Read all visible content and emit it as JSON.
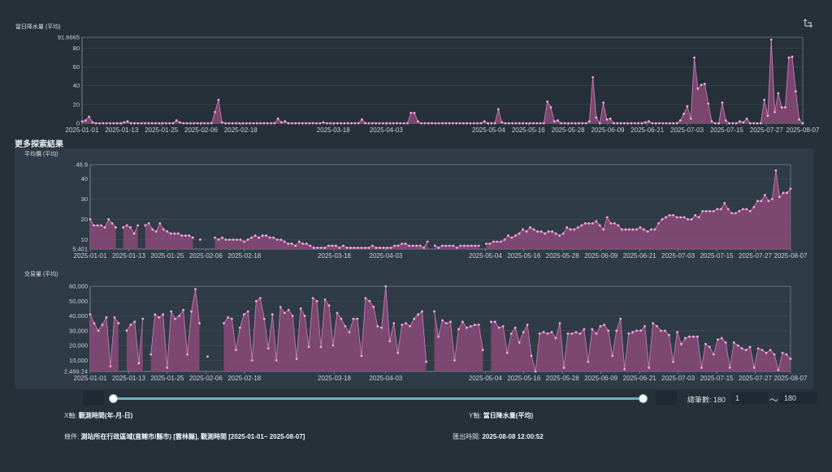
{
  "section_title": "更多探索結果",
  "range": {
    "count_label": "總筆數: 180",
    "from": "1",
    "to": "180",
    "tilde": "〜"
  },
  "info": {
    "x_label": "X軸:",
    "x_value": "觀測時間(年-月-日)",
    "y_label": "Y軸:",
    "y_value": "當日降水量(平均)",
    "cond_label": "條件:",
    "cond_value": "測站所在行政區域(直轄市/縣市) [雲林縣], 觀測時間 [2025-01-01~ 2025-08-07]",
    "export_label": "匯出時間:",
    "export_value": "2025-08-08 12:00:52"
  },
  "colors": {
    "fill": "#8a4a78",
    "line": "#c57bb4",
    "point": "#f0a8dc",
    "grid": "#44505c",
    "axis": "#8b96a0",
    "bg": "#263039"
  },
  "icons": {
    "reset": "restore-zoom-icon"
  },
  "chart_data": [
    {
      "type": "area",
      "title": "當日降水量 (平均)",
      "x_start": "2025-01-01",
      "x_end": "2025-08-07",
      "x_ticks": [
        "2025-01-01",
        "2025-01-13",
        "2025-01-25",
        "2025-02-06",
        "2025-02-18",
        "2025-03-18",
        "2025-04-03",
        "2025-05-04",
        "2025-05-16",
        "2025-05-28",
        "2025-06-09",
        "2025-06-21",
        "2025-07-03",
        "2025-07-15",
        "2025-07-27",
        "2025-08-07"
      ],
      "y_ticks": [
        "91.6665",
        "80",
        "60",
        "40",
        "20",
        "0"
      ],
      "ylim": [
        0,
        91.6665
      ],
      "values": [
        2,
        3,
        7,
        1,
        0,
        0,
        0,
        0,
        0,
        0,
        0,
        0,
        1,
        2,
        0,
        0,
        0,
        0,
        0,
        0,
        0,
        0,
        0,
        0,
        0,
        0,
        0,
        3,
        1,
        0,
        0,
        0,
        0,
        0,
        0,
        0,
        0,
        0,
        12,
        25,
        1,
        0,
        0,
        0,
        0,
        0,
        0,
        0,
        0,
        0,
        0,
        0,
        0,
        0,
        0,
        0,
        5,
        1,
        2,
        0,
        0,
        0,
        0,
        0,
        0,
        0,
        0,
        0,
        0,
        1,
        0,
        0,
        0,
        0,
        0,
        0,
        0,
        0,
        0,
        0,
        4,
        0,
        0,
        0,
        0,
        0,
        0,
        0,
        0,
        0,
        0,
        0,
        0,
        0,
        11,
        11,
        2,
        0,
        0,
        0,
        0,
        0,
        0,
        0,
        0,
        0,
        0,
        0,
        0,
        0,
        0,
        0,
        0,
        0,
        0,
        2,
        0,
        0,
        0,
        15,
        1,
        0,
        0,
        0,
        0,
        0,
        0,
        0,
        0,
        0,
        0,
        0,
        0,
        23,
        17,
        2,
        3,
        0,
        0,
        0,
        0,
        0,
        0,
        0,
        0,
        2,
        49,
        6,
        0,
        22,
        4,
        5,
        0,
        0,
        0,
        0,
        0,
        0,
        0,
        0,
        0,
        1,
        2,
        0,
        0,
        0,
        0,
        0,
        0,
        0,
        0,
        3,
        10,
        18,
        5,
        70,
        37,
        41,
        42,
        21,
        2,
        0,
        0,
        22,
        3,
        0,
        0,
        0,
        2,
        1,
        5,
        0,
        0,
        0,
        0,
        25,
        8,
        89,
        12,
        32,
        17,
        17,
        70,
        71,
        34,
        4,
        0
      ]
    },
    {
      "type": "area",
      "title": "平均價 (平均)",
      "x_start": "2025-01-01",
      "x_end": "2025-08-07",
      "x_ticks": [
        "2025-01-01",
        "2025-01-13",
        "2025-01-25",
        "2025-02-06",
        "2025-02-18",
        "2025-03-18",
        "2025-04-03",
        "2025-05-04",
        "2025-05-16",
        "2025-05-28",
        "2025-06-09",
        "2025-06-21",
        "2025-07-03",
        "2025-07-15",
        "2025-07-27",
        "2025-08-07"
      ],
      "y_ticks": [
        "46.9",
        "40",
        "30",
        "20",
        "10",
        "5.401"
      ],
      "ylim": [
        5.401,
        46.9
      ],
      "values": [
        20,
        17,
        17,
        17,
        16,
        20,
        18,
        16,
        null,
        16,
        17,
        16,
        13,
        17,
        null,
        17,
        18,
        15,
        14,
        18,
        15,
        14,
        13,
        13,
        13,
        12,
        12,
        12,
        11,
        null,
        10,
        null,
        null,
        null,
        11,
        10,
        11,
        10,
        10,
        10,
        10,
        10,
        9,
        10,
        11,
        12,
        11,
        12,
        12,
        11,
        11,
        10,
        10,
        9,
        8,
        8,
        7,
        9,
        8,
        8,
        7,
        6,
        6,
        6,
        6,
        7,
        7,
        7,
        6,
        7,
        6,
        6,
        6,
        6,
        6,
        6,
        6,
        7,
        6,
        6,
        6,
        6,
        6,
        7,
        7,
        8,
        8,
        7,
        7,
        7,
        7,
        6,
        9,
        null,
        7,
        6,
        7,
        7,
        7,
        7,
        6,
        7,
        7,
        7,
        7,
        7,
        7,
        null,
        8,
        8,
        9,
        9,
        9,
        10,
        12,
        11,
        12,
        13,
        15,
        14,
        16,
        15,
        14,
        14,
        13,
        14,
        14,
        13,
        12,
        13,
        16,
        15,
        15,
        16,
        17,
        18,
        18,
        18,
        19,
        17,
        15,
        21,
        18,
        18,
        17,
        15,
        15,
        15,
        15,
        15,
        16,
        15,
        14,
        15,
        15,
        18,
        20,
        21,
        22,
        22,
        21,
        21,
        21,
        20,
        20,
        22,
        21,
        24,
        24,
        24,
        24,
        25,
        25,
        28,
        25,
        23,
        23,
        24,
        25,
        25,
        24,
        26,
        29,
        29,
        32,
        29,
        30,
        44,
        31,
        33,
        33,
        35
      ]
    },
    {
      "type": "area",
      "title": "交易量 (平均)",
      "x_start": "2025-01-01",
      "x_end": "2025-08-07",
      "x_ticks": [
        "2025-01-01",
        "2025-01-13",
        "2025-01-25",
        "2025-02-06",
        "2025-02-18",
        "2025-03-18",
        "2025-04-03",
        "2025-05-04",
        "2025-05-16",
        "2025-05-28",
        "2025-06-09",
        "2025-06-21",
        "2025-07-03",
        "2025-07-15",
        "2025-07-27",
        "2025-08-07"
      ],
      "y_ticks": [
        "60,000",
        "50,000",
        "40,000",
        "30,000",
        "20,000",
        "10,000",
        "2,489.24"
      ],
      "ylim": [
        2489.24,
        60000
      ],
      "values": [
        41000,
        35000,
        30000,
        34000,
        39000,
        6000,
        39000,
        35000,
        null,
        30000,
        34000,
        36000,
        8000,
        38000,
        null,
        14000,
        41000,
        39000,
        41000,
        5000,
        43000,
        38000,
        40000,
        44000,
        14000,
        43000,
        58000,
        35000,
        null,
        12500,
        null,
        null,
        null,
        35000,
        39000,
        38000,
        17000,
        32000,
        41000,
        43000,
        10000,
        50000,
        52000,
        38000,
        18000,
        41000,
        10000,
        46000,
        42000,
        44000,
        40000,
        11000,
        45000,
        40000,
        19000,
        52000,
        50000,
        19000,
        51000,
        47000,
        20000,
        42000,
        38000,
        33000,
        29000,
        38000,
        38000,
        13000,
        52000,
        50000,
        46000,
        33000,
        32000,
        60000,
        23000,
        35000,
        15000,
        34000,
        35000,
        33000,
        38000,
        41000,
        43000,
        9000,
        null,
        43000,
        26000,
        37000,
        35000,
        36000,
        10000,
        31000,
        36000,
        32000,
        33000,
        34000,
        34000,
        17000,
        null,
        36000,
        36000,
        32000,
        33000,
        15000,
        28000,
        32000,
        22000,
        29000,
        34000,
        13000,
        2500,
        28000,
        29000,
        28000,
        29000,
        25000,
        35000,
        5000,
        28000,
        28000,
        29000,
        28000,
        31000,
        9000,
        31000,
        28000,
        33000,
        34000,
        30000,
        13000,
        30000,
        38000,
        4000,
        28000,
        29000,
        30000,
        30000,
        33000,
        5000,
        35000,
        33000,
        30000,
        30000,
        27000,
        9000,
        29000,
        21000,
        25000,
        26000,
        26000,
        26000,
        5000,
        21000,
        19000,
        14000,
        24000,
        25000,
        22000,
        5000,
        22000,
        20000,
        18000,
        17000,
        19000,
        5000,
        18000,
        17000,
        15000,
        17000,
        14000,
        3500,
        15000,
        14000,
        11000
      ]
    }
  ]
}
